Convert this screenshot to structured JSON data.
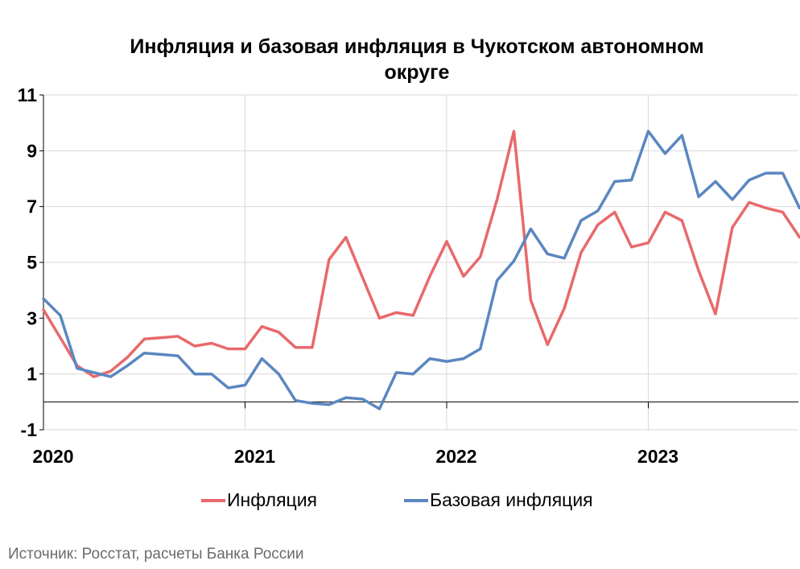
{
  "chart_data": {
    "type": "line",
    "title_lines": [
      "Инфляция и базовая инфляция в Чукотском автономном",
      "округе"
    ],
    "xlabel": "",
    "ylabel": "",
    "ylim": [
      -1,
      11
    ],
    "y_ticks": [
      -1,
      1,
      3,
      5,
      7,
      9,
      11
    ],
    "x_year_labels": [
      "2020",
      "2021",
      "2022",
      "2023"
    ],
    "x_months_start": "2020-01",
    "grid": true,
    "legend_position": "bottom",
    "series": [
      {
        "name": "Инфляция",
        "color": "#e8696b",
        "values": [
          3.3,
          2.3,
          1.3,
          0.9,
          1.1,
          1.6,
          2.25,
          2.3,
          2.35,
          2.0,
          2.1,
          1.9,
          1.9,
          2.7,
          2.5,
          1.95,
          1.95,
          5.1,
          5.9,
          4.45,
          3.0,
          3.2,
          3.1,
          4.5,
          5.75,
          4.5,
          5.2,
          7.25,
          9.7,
          3.65,
          2.05,
          3.35,
          5.35,
          6.35,
          6.8,
          5.55,
          5.7,
          6.8,
          6.5,
          4.7,
          3.15,
          6.25,
          7.15,
          6.95,
          6.8,
          5.9
        ]
      },
      {
        "name": "Базовая инфляция",
        "color": "#5b87c0",
        "values": [
          3.7,
          3.1,
          1.2,
          1.05,
          0.9,
          1.3,
          1.75,
          1.7,
          1.65,
          1.0,
          1.0,
          0.5,
          0.6,
          1.55,
          1.0,
          0.05,
          -0.05,
          -0.1,
          0.15,
          0.1,
          -0.25,
          1.05,
          1.0,
          1.55,
          1.45,
          1.55,
          1.9,
          4.35,
          5.05,
          6.2,
          5.3,
          5.15,
          6.5,
          6.85,
          7.9,
          7.95,
          9.7,
          8.9,
          9.55,
          7.35,
          7.9,
          7.25,
          7.95,
          8.2,
          8.2,
          6.95
        ]
      }
    ]
  },
  "source_text": "Источник: Росстат, расчеты Банка России"
}
